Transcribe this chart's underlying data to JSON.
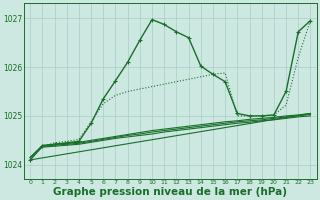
{
  "background_color": "#cce8e0",
  "grid_color": "#aacccc",
  "line_color": "#1a6e2a",
  "xlabel": "Graphe pression niveau de la mer (hPa)",
  "xlabel_fontsize": 7.5,
  "ylim": [
    1023.7,
    1027.3
  ],
  "xlim": [
    -0.5,
    23.5
  ],
  "yticks": [
    1024,
    1025,
    1026,
    1027
  ],
  "xticks": [
    0,
    1,
    2,
    3,
    4,
    5,
    6,
    7,
    8,
    9,
    10,
    11,
    12,
    13,
    14,
    15,
    16,
    17,
    18,
    19,
    20,
    21,
    22,
    23
  ],
  "series": {
    "diagonal": {
      "x": [
        0,
        23
      ],
      "y": [
        1024.1,
        1025.05
      ],
      "linewidth": 0.8,
      "marker": null,
      "dashed": false
    },
    "flat1": {
      "x": [
        0,
        1,
        2,
        3,
        4,
        5,
        6,
        7,
        8,
        9,
        10,
        11,
        12,
        13,
        14,
        15,
        16,
        17,
        18,
        19,
        20,
        21,
        22,
        23
      ],
      "y": [
        1024.15,
        1024.4,
        1024.42,
        1024.44,
        1024.46,
        1024.5,
        1024.54,
        1024.58,
        1024.62,
        1024.66,
        1024.7,
        1024.73,
        1024.76,
        1024.79,
        1024.82,
        1024.85,
        1024.88,
        1024.9,
        1024.93,
        1024.95,
        1024.97,
        1025.0,
        1025.02,
        1025.05
      ],
      "linewidth": 0.8,
      "marker": null,
      "dashed": false
    },
    "flat2": {
      "x": [
        0,
        1,
        2,
        3,
        4,
        5,
        6,
        7,
        8,
        9,
        10,
        11,
        12,
        13,
        14,
        15,
        16,
        17,
        18,
        19,
        20,
        21,
        22,
        23
      ],
      "y": [
        1024.15,
        1024.38,
        1024.4,
        1024.42,
        1024.44,
        1024.48,
        1024.52,
        1024.56,
        1024.6,
        1024.63,
        1024.67,
        1024.7,
        1024.73,
        1024.76,
        1024.79,
        1024.82,
        1024.85,
        1024.88,
        1024.9,
        1024.92,
        1024.95,
        1024.98,
        1025.0,
        1025.03
      ],
      "linewidth": 0.8,
      "marker": null,
      "dashed": false
    },
    "flat3": {
      "x": [
        0,
        1,
        2,
        3,
        4,
        5,
        6,
        7,
        8,
        9,
        10,
        11,
        12,
        13,
        14,
        15,
        16,
        17,
        18,
        19,
        20,
        21,
        22,
        23
      ],
      "y": [
        1024.15,
        1024.36,
        1024.38,
        1024.4,
        1024.42,
        1024.46,
        1024.5,
        1024.54,
        1024.57,
        1024.6,
        1024.63,
        1024.67,
        1024.7,
        1024.73,
        1024.76,
        1024.79,
        1024.82,
        1024.85,
        1024.87,
        1024.9,
        1024.92,
        1024.95,
        1024.98,
        1025.0
      ],
      "linewidth": 0.8,
      "marker": null,
      "dashed": false
    },
    "main_line": {
      "x": [
        0,
        1,
        2,
        3,
        4,
        5,
        6,
        7,
        8,
        9,
        10,
        11,
        12,
        13,
        14,
        15,
        16,
        17,
        18,
        19,
        20,
        21,
        22,
        23
      ],
      "y": [
        1024.1,
        1024.38,
        1024.42,
        1024.45,
        1024.48,
        1024.85,
        1025.35,
        1025.72,
        1026.1,
        1026.55,
        1026.97,
        1026.87,
        1026.72,
        1026.6,
        1026.02,
        1025.85,
        1025.7,
        1025.05,
        1025.0,
        1025.0,
        1025.02,
        1025.5,
        1026.72,
        1026.95
      ],
      "linewidth": 1.0,
      "marker": "+",
      "dashed": false
    },
    "dotted_line": {
      "x": [
        0,
        1,
        2,
        3,
        4,
        5,
        6,
        7,
        8,
        9,
        10,
        11,
        12,
        13,
        14,
        15,
        16,
        17,
        18,
        19,
        20,
        21,
        22,
        23
      ],
      "y": [
        1024.1,
        1024.38,
        1024.45,
        1024.48,
        1024.52,
        1024.88,
        1025.25,
        1025.42,
        1025.5,
        1025.55,
        1025.6,
        1025.65,
        1025.7,
        1025.75,
        1025.8,
        1025.85,
        1025.88,
        1025.0,
        1025.0,
        1025.0,
        1025.02,
        1025.22,
        1026.2,
        1026.95
      ],
      "linewidth": 0.8,
      "marker": null,
      "dashed": true
    }
  }
}
